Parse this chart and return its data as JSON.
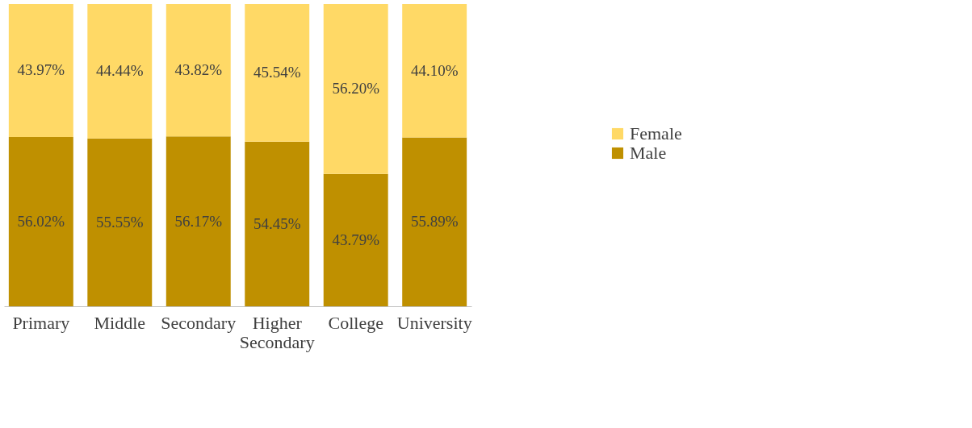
{
  "chart_data": {
    "type": "bar",
    "stacked": true,
    "categories": [
      "Primary",
      "Middle",
      "Secondary",
      "Higher Secondary",
      "College",
      "University"
    ],
    "series": [
      {
        "name": "Male",
        "color": "#bf9000",
        "values": [
          56.02,
          55.55,
          56.17,
          54.45,
          43.79,
          55.89
        ],
        "value_labels": [
          "56.02%",
          "55.55%",
          "56.17%",
          "54.45%",
          "43.79%",
          "55.89%"
        ]
      },
      {
        "name": "Female",
        "color": "#ffd966",
        "values": [
          43.97,
          44.44,
          43.82,
          45.54,
          56.2,
          44.1
        ],
        "value_labels": [
          "43.97%",
          "44.44%",
          "43.82%",
          "45.54%",
          "56.20%",
          "44.10%"
        ]
      }
    ],
    "ylim": [
      0,
      100
    ],
    "tick_labels": "x",
    "legend": "right"
  }
}
